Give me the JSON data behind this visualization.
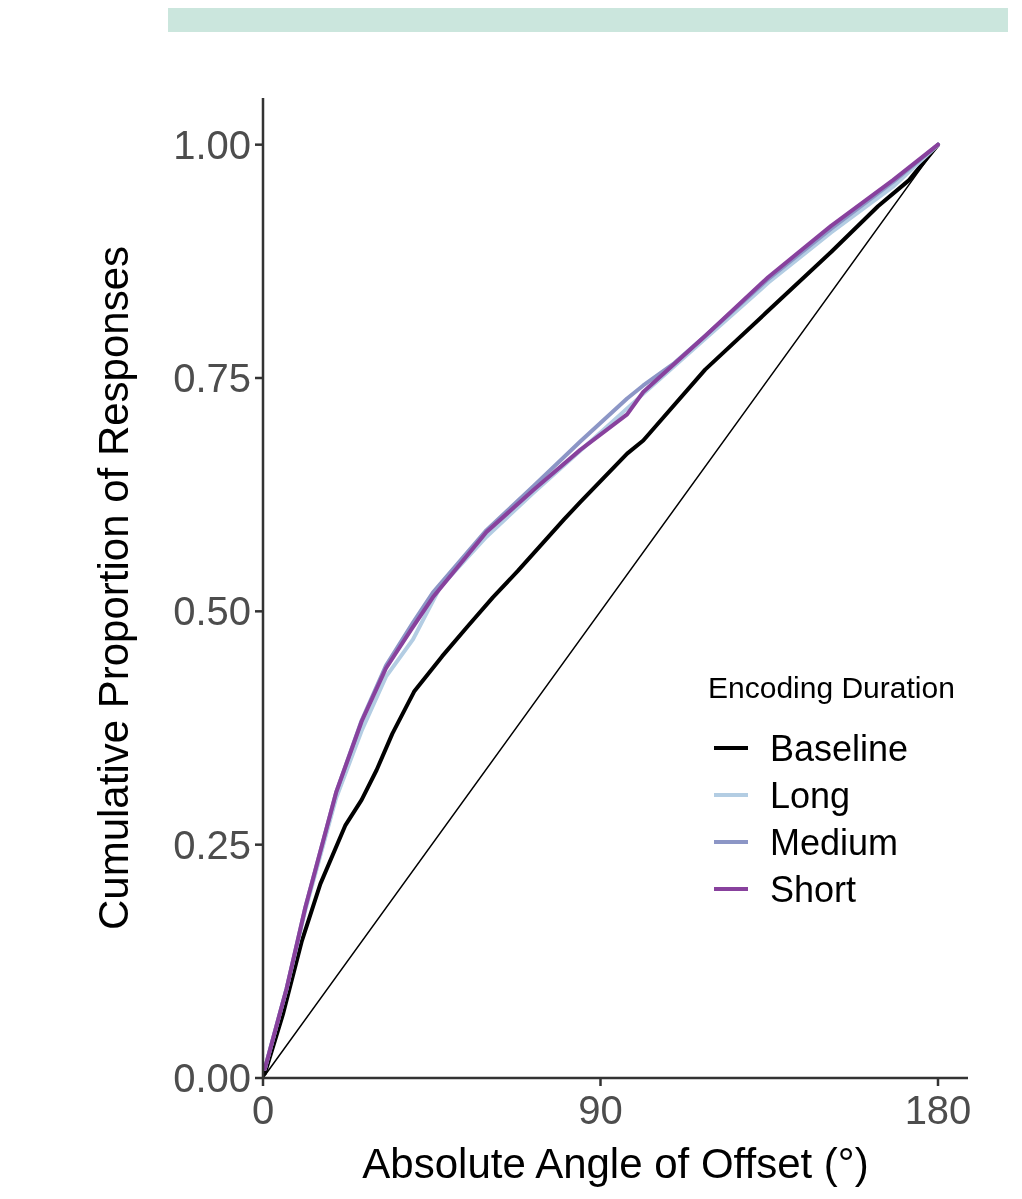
{
  "chart_data": {
    "type": "line",
    "xlabel": "Absolute Angle of Offset (°)",
    "ylabel": "Cumulative Proportion of Responses",
    "legend_title": "Encoding Duration",
    "legend": "right",
    "xlim": [
      0,
      188
    ],
    "ylim": [
      0,
      1.05
    ],
    "xticks": [
      0,
      90,
      180
    ],
    "yticks": [
      {
        "value": 0,
        "label": "0.00"
      },
      {
        "value": 0.25,
        "label": "0.25"
      },
      {
        "value": 0.5,
        "label": "0.50"
      },
      {
        "value": 0.75,
        "label": "0.75"
      },
      {
        "value": 1,
        "label": "1.00"
      }
    ],
    "grid": false,
    "series": [
      {
        "color": "#000000",
        "x": [
          0,
          180
        ],
        "values": [
          0,
          1
        ],
        "line_style": "solid"
      },
      {
        "name": "Baseline",
        "color": "#000000",
        "x": [
          0.5,
          5.3,
          10.3,
          15.3,
          22,
          26.3,
          30.3,
          34.5,
          40.3,
          47.8,
          54.6,
          61.3,
          67.9,
          80.4,
          84.6,
          97.1,
          101.4,
          117.9,
          134.7,
          151.5,
          164,
          172.3,
          180
        ],
        "values": [
          0.005,
          0.068,
          0.146,
          0.208,
          0.271,
          0.298,
          0.33,
          0.369,
          0.414,
          0.452,
          0.484,
          0.515,
          0.543,
          0.599,
          0.617,
          0.669,
          0.683,
          0.759,
          0.822,
          0.885,
          0.934,
          0.962,
          1
        ]
      },
      {
        "name": "Long",
        "color": "#b3cde3",
        "x": [
          0.5,
          6.3,
          11.3,
          19.5,
          26.3,
          32.8,
          40,
          47.1,
          59.6,
          72.1,
          84.6,
          101.4,
          117.9,
          134.7,
          151.5,
          168,
          180
        ],
        "values": [
          0.01,
          0.096,
          0.18,
          0.3,
          0.372,
          0.43,
          0.47,
          0.525,
          0.58,
          0.627,
          0.672,
          0.733,
          0.792,
          0.852,
          0.906,
          0.955,
          1
        ]
      },
      {
        "name": "Medium",
        "color": "#8c96c6",
        "x": [
          0.5,
          6.3,
          11.3,
          19.5,
          26.3,
          32.8,
          40,
          45.3,
          59.6,
          72.1,
          84.6,
          97.1,
          101.4,
          109.7,
          117.9,
          134.7,
          151.5,
          168,
          180
        ],
        "values": [
          0.01,
          0.096,
          0.183,
          0.306,
          0.383,
          0.442,
          0.488,
          0.52,
          0.587,
          0.634,
          0.682,
          0.728,
          0.742,
          0.766,
          0.795,
          0.856,
          0.91,
          0.96,
          1
        ]
      },
      {
        "name": "Short",
        "color": "#88419d",
        "x": [
          0.5,
          6.3,
          11.3,
          19.5,
          26.3,
          32.8,
          39.6,
          45.3,
          59.6,
          72.1,
          84.6,
          97.1,
          101.4,
          117.9,
          134.7,
          151.5,
          168,
          180
        ],
        "values": [
          0.01,
          0.096,
          0.183,
          0.306,
          0.382,
          0.439,
          0.481,
          0.515,
          0.585,
          0.63,
          0.673,
          0.711,
          0.735,
          0.795,
          0.858,
          0.913,
          0.962,
          1
        ]
      }
    ]
  }
}
